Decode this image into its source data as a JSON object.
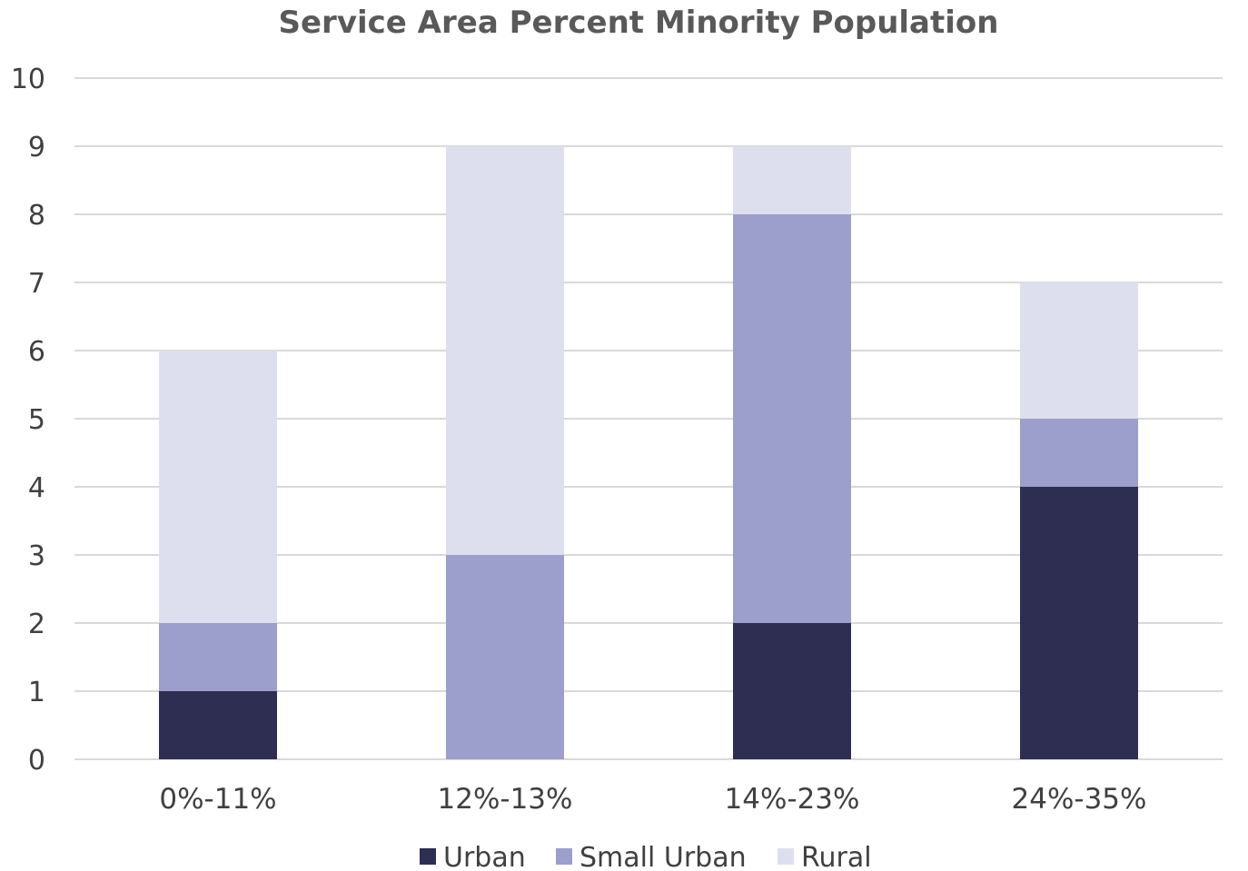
{
  "chart_data": {
    "type": "bar",
    "stacked": true,
    "title": "Service Area Percent Minority Population",
    "xlabel": "",
    "ylabel": "",
    "categories": [
      "0%-11%",
      "12%-13%",
      "14%-23%",
      "24%-35%"
    ],
    "series": [
      {
        "name": "Urban",
        "color": "#2d2e52",
        "values": [
          1,
          0,
          2,
          4
        ]
      },
      {
        "name": "Small Urban",
        "color": "#9c9ecb",
        "values": [
          1,
          3,
          6,
          1
        ]
      },
      {
        "name": "Rural",
        "color": "#dedfee",
        "values": [
          4,
          6,
          1,
          2
        ]
      }
    ],
    "ylim": [
      0,
      10
    ],
    "yticks": [
      "0",
      "1",
      "2",
      "3",
      "4",
      "5",
      "6",
      "7",
      "8",
      "9",
      "10"
    ],
    "grid": true,
    "legend_position": "bottom"
  }
}
